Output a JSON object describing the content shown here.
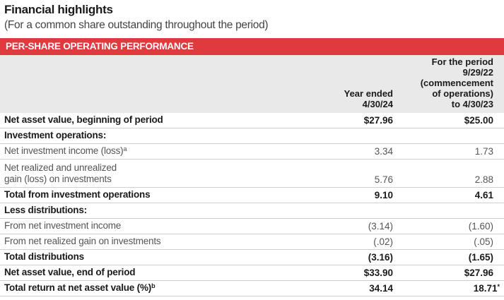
{
  "title": "Financial highlights",
  "subtitle": "(For a common share outstanding throughout the period)",
  "section": "PER-SHARE OPERATING PERFORMANCE",
  "columns": {
    "c1": [
      "Year ended",
      "4/30/24"
    ],
    "c2": [
      "For the period",
      "9/29/22",
      "(commencement",
      "of operations)",
      "to 4/30/23"
    ]
  },
  "rows": [
    {
      "label": "Net asset value, beginning of period",
      "v1": "$27.96",
      "v2": "$25.00",
      "style": "bold",
      "h": 22
    },
    {
      "label": "Investment operations:",
      "v1": "",
      "v2": "",
      "style": "bold",
      "h": 22
    },
    {
      "label": "Net investment income (loss)",
      "sup": "a",
      "v1": "3.34",
      "v2": "1.73",
      "style": "light",
      "h": 22
    },
    {
      "label": "Net realized and unrealized",
      "label2": "gain (loss) on investments",
      "v1": "5.76",
      "v2": "2.88",
      "style": "light",
      "h": 40
    },
    {
      "label": "Total from investment operations",
      "v1": "9.10",
      "v2": "4.61",
      "style": "bold",
      "h": 22
    },
    {
      "label": "Less distributions:",
      "v1": "",
      "v2": "",
      "style": "bold",
      "h": 22
    },
    {
      "label": "From net investment income",
      "v1": "(3.14)",
      "v2": "(1.60)",
      "style": "light",
      "h": 22
    },
    {
      "label": "From net realized gain on investments",
      "v1": "(.02)",
      "v2": "(.05)",
      "style": "light",
      "h": 22
    },
    {
      "label": "Total distributions",
      "v1": "(3.16)",
      "v2": "(1.65)",
      "style": "bold",
      "h": 22
    },
    {
      "label": "Net asset value, end of period",
      "v1": "$33.90",
      "v2": "$27.96",
      "style": "bold",
      "h": 22
    },
    {
      "label": "Total return at net asset value (%)",
      "sup": "b",
      "v1": "34.14",
      "v2": "18.71",
      "v2sup": "*",
      "style": "bold",
      "h": 22
    }
  ]
}
